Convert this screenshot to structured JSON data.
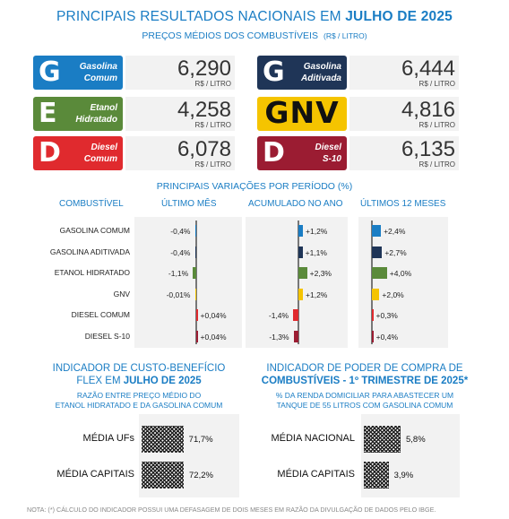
{
  "header": {
    "title_prefix": "PRINCIPAIS RESULTADOS NACIONAIS EM",
    "title_bold": "JULHO DE 2025",
    "subtitle": "PREÇOS MÉDIOS DOS COMBUSTÍVEIS",
    "subtitle_unit": "(R$ / LITRO)"
  },
  "prices": [
    {
      "letter": "G",
      "name_line1": "Gasolina",
      "name_line2": "Comum",
      "value": "6,290",
      "unit": "R$ / LITRO",
      "color": "#1a7dc4"
    },
    {
      "letter": "G",
      "name_line1": "Gasolina",
      "name_line2": "Aditivada",
      "value": "6,444",
      "unit": "R$ / LITRO",
      "color": "#1f3557"
    },
    {
      "letter": "E",
      "name_line1": "Etanol",
      "name_line2": "Hidratado",
      "value": "4,258",
      "unit": "R$ / LITRO",
      "color": "#5a8a3a"
    },
    {
      "letter": "GNV",
      "name_line1": "",
      "name_line2": "",
      "value": "4,816",
      "unit": "R$ / LITRO",
      "color": "#f5c400"
    },
    {
      "letter": "D",
      "name_line1": "Diesel",
      "name_line2": "Comum",
      "value": "6,078",
      "unit": "R$ / LITRO",
      "color": "#e02a2e"
    },
    {
      "letter": "D",
      "name_line1": "Diesel",
      "name_line2": "S-10",
      "value": "6,135",
      "unit": "R$ / LITRO",
      "color": "#9b1c32"
    }
  ],
  "variations": {
    "title": "PRINCIPAIS VARIAÇÕES POR PERÍODO (%)",
    "col_fuel": "COMBUSTÍVEL",
    "col_month": "ÚLTIMO MÊS",
    "col_year": "ACUMULADO NO ANO",
    "col_12m": "ÚLTIMOS 12 MESES",
    "rows": [
      {
        "label": "GASOLINA COMUM",
        "color": "#1a7dc4",
        "month": -0.4,
        "month_label": "-0,4%",
        "year": 1.2,
        "year_label": "+1,2%",
        "m12": 2.4,
        "m12_label": "+2,4%"
      },
      {
        "label": "GASOLINA ADITIVADA",
        "color": "#1f3557",
        "month": -0.4,
        "month_label": "-0,4%",
        "year": 1.1,
        "year_label": "+1,1%",
        "m12": 2.7,
        "m12_label": "+2,7%"
      },
      {
        "label": "ETANOL HIDRATADO",
        "color": "#5a8a3a",
        "month": -1.1,
        "month_label": "-1,1%",
        "year": 2.3,
        "year_label": "+2,3%",
        "m12": 4.0,
        "m12_label": "+4,0%"
      },
      {
        "label": "GNV",
        "color": "#f5c400",
        "month": -0.01,
        "month_label": "-0,01%",
        "year": 1.2,
        "year_label": "+1,2%",
        "m12": 2.0,
        "m12_label": "+2,0%"
      },
      {
        "label": "DIESEL COMUM",
        "color": "#e02a2e",
        "month": 0.04,
        "month_label": "+0,04%",
        "year": -1.4,
        "year_label": "-1,4%",
        "m12": 0.3,
        "m12_label": "+0,3%"
      },
      {
        "label": "DIESEL  S-10",
        "color": "#9b1c32",
        "month": 0.04,
        "month_label": "+0,04%",
        "year": -1.3,
        "year_label": "-1,3%",
        "m12": 0.4,
        "m12_label": "+0,4%"
      }
    ]
  },
  "flex": {
    "title_line1": "INDICADOR DE CUSTO-BENEFÍCIO",
    "title_line2_prefix": "FLEX EM",
    "title_line2_bold": "JULHO DE 2025",
    "sub_line1": "RAZÃO ENTRE PREÇO MÉDIO DO",
    "sub_line2": "ETANOL HIDRATADO E DA GASOLINA COMUM",
    "items": [
      {
        "label": "MÉDIA UFs",
        "value": 71.7,
        "value_label": "71,7%"
      },
      {
        "label": "MÉDIA CAPITAIS",
        "value": 72.2,
        "value_label": "72,2%"
      }
    ]
  },
  "purchase": {
    "title_line1": "INDICADOR DE PODER DE COMPRA DE",
    "title_line2": "COMBUSTÍVEIS - 1º TRIMESTRE DE 2025*",
    "sub_line1": "% DA RENDA DOMICILIAR PARA ABASTECER UM",
    "sub_line2": "TANQUE DE 55 LITROS COM GASOLINA COMUM",
    "items": [
      {
        "label": "MÉDIA NACIONAL",
        "value": 5.8,
        "value_label": "5,8%"
      },
      {
        "label": "MÉDIA CAPITAIS",
        "value": 3.9,
        "value_label": "3,9%"
      }
    ]
  },
  "note": "NOTA: (*) CÁLCULO DO INDICADOR POSSUI UMA DEFASAGEM DE DOIS MESES EM RAZÃO DA DIVULGAÇÃO DE DADOS PELO IBGE."
}
